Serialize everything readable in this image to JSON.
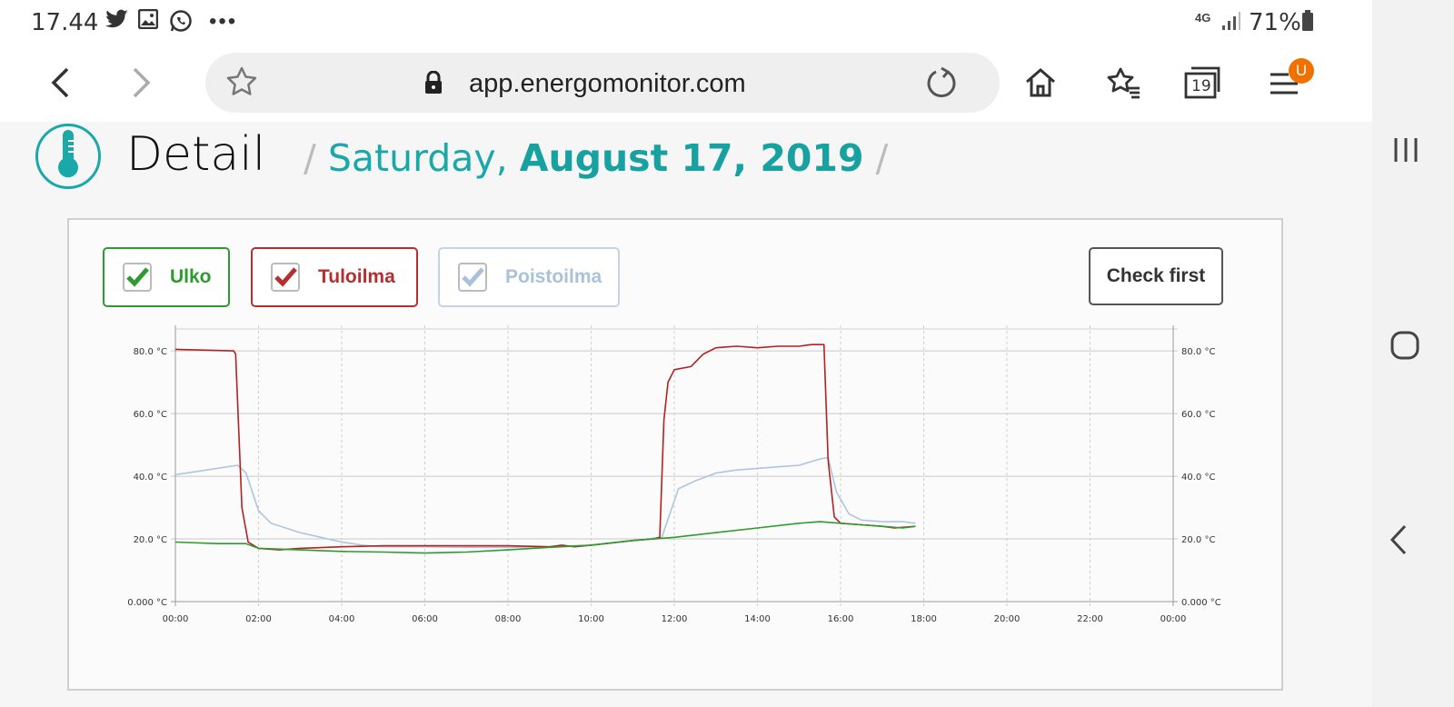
{
  "status_bar": {
    "time": "17.44",
    "icons": [
      "twitter-icon",
      "image-icon",
      "whatsapp-icon",
      "more-dots-icon"
    ],
    "network": "4G",
    "battery": "71%"
  },
  "browser": {
    "url": "app.energomonitor.com",
    "tab_count": "19",
    "profile_initial": "U"
  },
  "page": {
    "title": "Detail",
    "date_prefix": "Saturday,",
    "date_bold": "August 17, 2019",
    "slash": "/"
  },
  "legend": [
    {
      "label": "Ulko",
      "color": "#2e9b2e",
      "checked": true
    },
    {
      "label": "Tuloilma",
      "color": "#b82e2e",
      "checked": true
    },
    {
      "label": "Poistoilma",
      "color": "#a9c2dc",
      "checked": true
    }
  ],
  "check_first_label": "Check first",
  "colors": {
    "accent": "#1aa8a8",
    "ulko": "#2e9b2e",
    "tuloilma": "#b22222",
    "poistoilma": "#adc6df"
  },
  "chart_data": {
    "type": "line",
    "x_ticks": [
      "00:00",
      "02:00",
      "04:00",
      "06:00",
      "08:00",
      "10:00",
      "12:00",
      "14:00",
      "16:00",
      "18:00",
      "20:00",
      "22:00",
      "00:00"
    ],
    "y_ticks": [
      "0.000 °C",
      "20.0 °C",
      "40.0 °C",
      "60.0 °C",
      "80.0 °C"
    ],
    "ylim": [
      0,
      87
    ],
    "xlim": [
      0,
      24
    ],
    "grid": true,
    "series": [
      {
        "name": "Ulko",
        "color": "#2e9b2e",
        "points": [
          [
            0,
            19
          ],
          [
            1,
            18.5
          ],
          [
            1.7,
            18.5
          ],
          [
            2,
            17
          ],
          [
            3,
            16.5
          ],
          [
            4,
            16
          ],
          [
            5,
            15.8
          ],
          [
            6,
            15.5
          ],
          [
            7,
            15.8
          ],
          [
            8,
            16.5
          ],
          [
            9,
            17.3
          ],
          [
            10,
            18
          ],
          [
            11,
            19.5
          ],
          [
            12,
            20.5
          ],
          [
            13,
            22
          ],
          [
            14,
            23.5
          ],
          [
            15,
            25
          ],
          [
            15.5,
            25.5
          ],
          [
            16,
            25
          ],
          [
            16.5,
            24.5
          ],
          [
            17,
            24
          ],
          [
            17.5,
            23.5
          ],
          [
            17.8,
            24
          ]
        ]
      },
      {
        "name": "Tuloilma",
        "color": "#b22222",
        "points": [
          [
            0,
            80.5
          ],
          [
            1.4,
            80
          ],
          [
            1.45,
            79
          ],
          [
            1.6,
            30
          ],
          [
            1.75,
            19
          ],
          [
            2,
            17
          ],
          [
            2.5,
            16.5
          ],
          [
            3,
            17
          ],
          [
            4,
            17.5
          ],
          [
            5,
            17.8
          ],
          [
            6,
            17.8
          ],
          [
            7,
            17.8
          ],
          [
            8,
            17.8
          ],
          [
            9,
            17.5
          ],
          [
            9.3,
            18
          ],
          [
            9.6,
            17.5
          ],
          [
            10,
            18
          ],
          [
            11,
            19.5
          ],
          [
            11.5,
            20
          ],
          [
            11.65,
            20.5
          ],
          [
            11.75,
            58
          ],
          [
            11.85,
            70
          ],
          [
            12,
            74
          ],
          [
            12.4,
            75
          ],
          [
            12.7,
            79
          ],
          [
            13,
            81
          ],
          [
            13.5,
            81.5
          ],
          [
            14,
            81
          ],
          [
            14.5,
            81.5
          ],
          [
            15,
            81.5
          ],
          [
            15.3,
            82
          ],
          [
            15.6,
            82
          ],
          [
            15.7,
            45
          ],
          [
            15.85,
            27
          ],
          [
            16,
            25
          ],
          [
            16.5,
            24.5
          ],
          [
            17,
            24
          ],
          [
            17.3,
            23.5
          ],
          [
            17.8,
            24
          ]
        ]
      },
      {
        "name": "Poistoilma",
        "color": "#adc6df",
        "points": [
          [
            0,
            40.5
          ],
          [
            0.5,
            41.5
          ],
          [
            1,
            42.5
          ],
          [
            1.5,
            43.5
          ],
          [
            1.7,
            41
          ],
          [
            2,
            29
          ],
          [
            2.3,
            25
          ],
          [
            3,
            22
          ],
          [
            3.5,
            20.5
          ],
          [
            4,
            19
          ],
          [
            4.5,
            18
          ],
          [
            5,
            17.5
          ],
          [
            6,
            17.5
          ],
          [
            7,
            17.3
          ],
          [
            8,
            17.3
          ],
          [
            9,
            17.5
          ],
          [
            10,
            18
          ],
          [
            11,
            19.5
          ],
          [
            11.7,
            20.5
          ],
          [
            12.1,
            36
          ],
          [
            12.5,
            38.5
          ],
          [
            13,
            41
          ],
          [
            13.5,
            42
          ],
          [
            14,
            42.5
          ],
          [
            14.5,
            43
          ],
          [
            15,
            43.5
          ],
          [
            15.5,
            45.5
          ],
          [
            15.7,
            46
          ],
          [
            15.9,
            35
          ],
          [
            16.2,
            28
          ],
          [
            16.5,
            26
          ],
          [
            17,
            25.5
          ],
          [
            17.5,
            25.5
          ],
          [
            17.8,
            25
          ]
        ]
      }
    ]
  }
}
